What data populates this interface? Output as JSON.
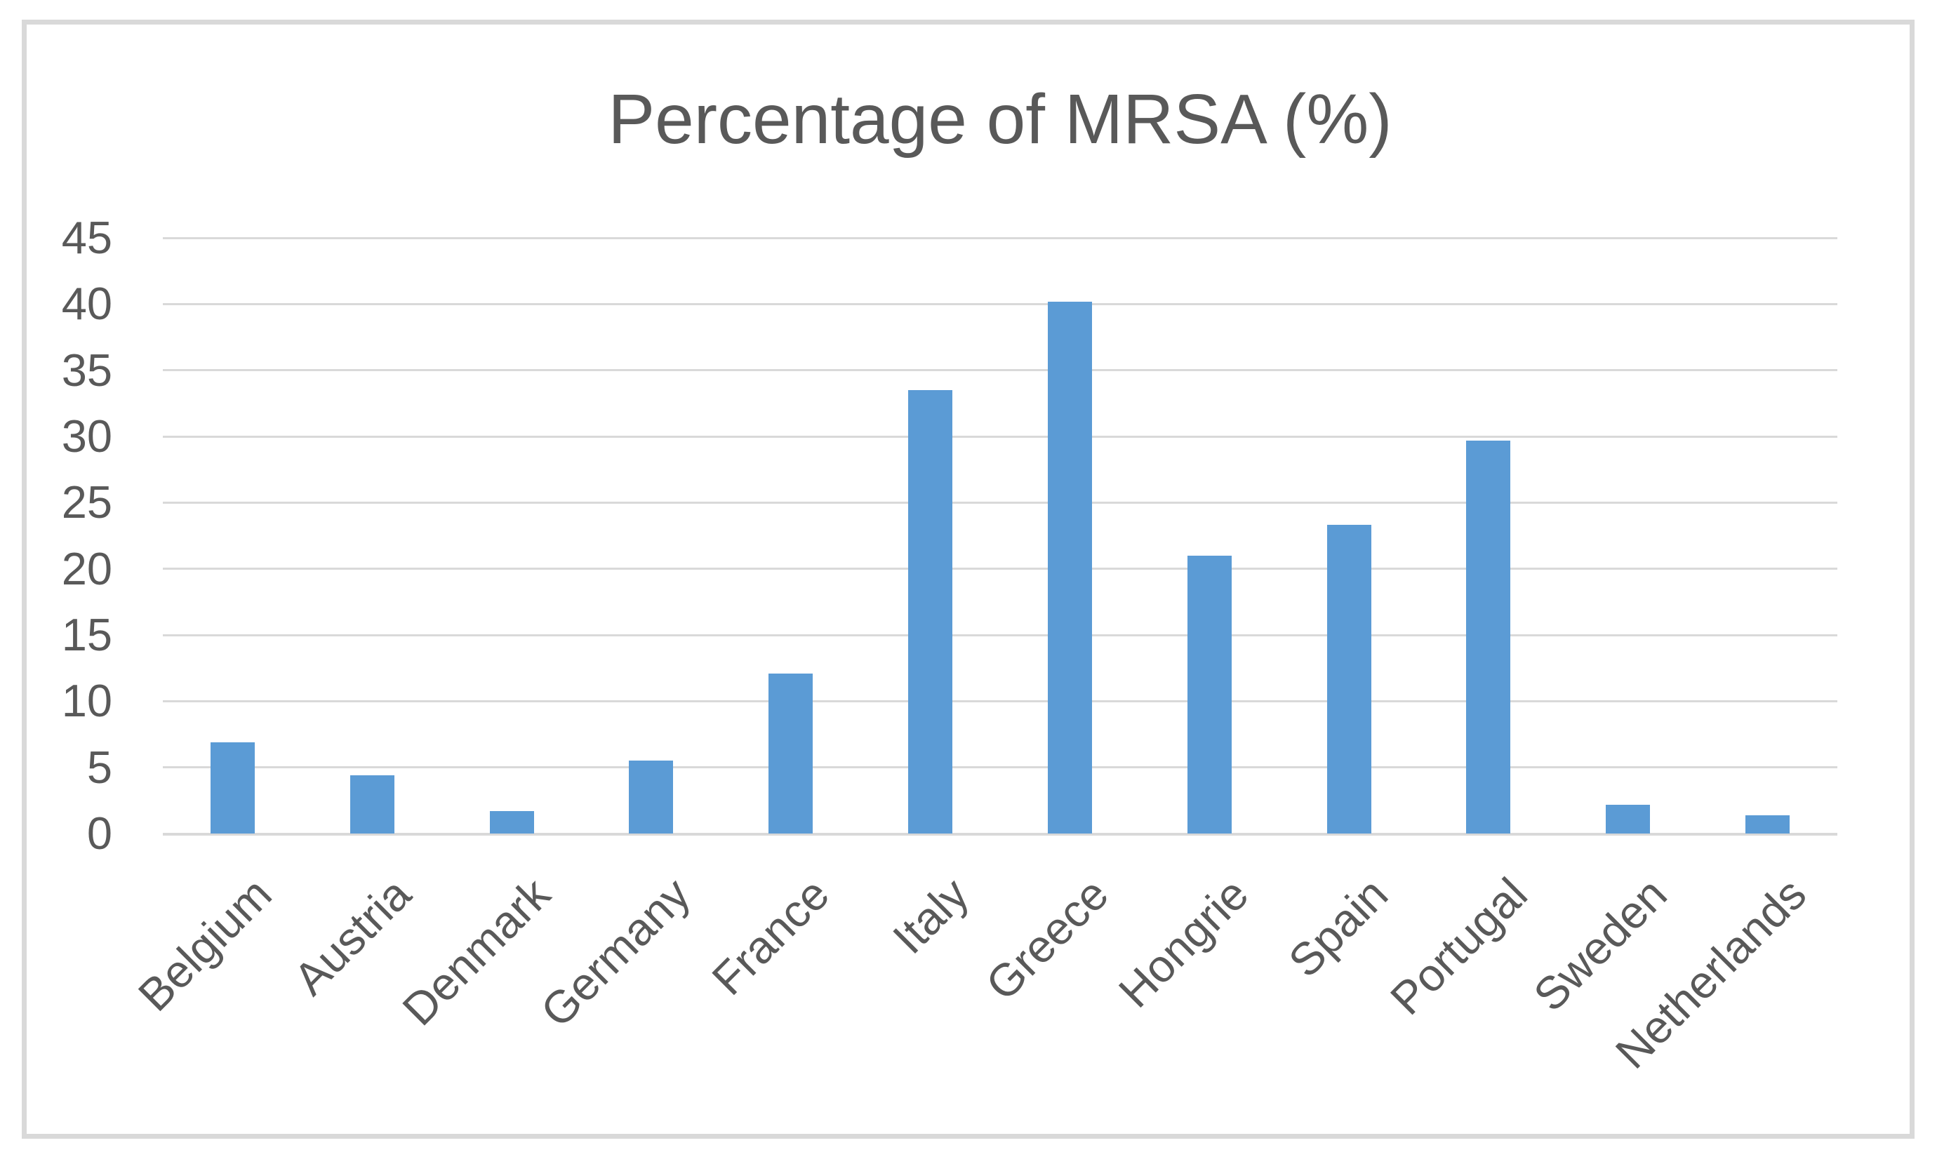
{
  "chart_data": {
    "type": "bar",
    "title": "Percentage of MRSA (%)",
    "categories": [
      "Belgium",
      "Austria",
      "Denmark",
      "Germany",
      "France",
      "Italy",
      "Greece",
      "Hongrie",
      "Spain",
      "Portugal",
      "Sweden",
      "Netherlands"
    ],
    "values": [
      6.9,
      4.4,
      1.7,
      5.5,
      12.1,
      33.5,
      40.2,
      21,
      23.3,
      29.7,
      2.2,
      1.4
    ],
    "xlabel": "",
    "ylabel": "",
    "ylim": [
      0,
      45
    ],
    "yticks": [
      0,
      5,
      10,
      15,
      20,
      25,
      30,
      35,
      40,
      45
    ],
    "grid": "horizontal-on",
    "legend": "none",
    "x_tick_rotation_deg": 45
  },
  "colors": {
    "bar": "#5b9bd5",
    "gridline": "#d9d9d9",
    "frame_border": "#d9d9d9",
    "axis_text": "#595959",
    "title_text": "#595959",
    "background": "#ffffff"
  }
}
